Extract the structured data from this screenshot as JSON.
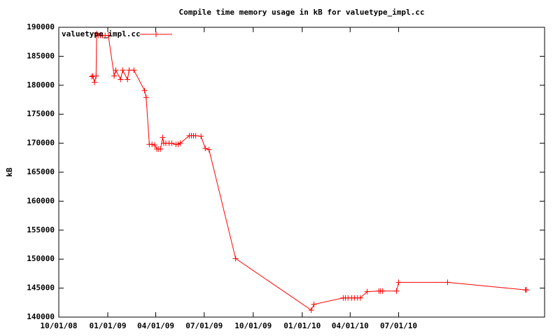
{
  "chart_data": {
    "type": "line",
    "title": "Compile time memory usage in kB for valuetype_impl.cc",
    "y_label": "kB",
    "x": [
      "12/02/08",
      "12/04/08",
      "12/07/08",
      "12/10/08",
      "12/11/08",
      "12/14/08",
      "12/18/08",
      "12/22/08",
      "12/27/08",
      "01/02/09",
      "01/13/09",
      "01/16/09",
      "01/25/09",
      "01/29/09",
      "02/07/09",
      "02/10/09",
      "02/19/09",
      "03/11/09",
      "03/14/09",
      "03/20/09",
      "03/25/09",
      "03/30/09",
      "04/03/09",
      "04/06/09",
      "04/10/09",
      "04/14/09",
      "04/16/09",
      "04/20/09",
      "04/26/09",
      "05/01/09",
      "05/09/09",
      "05/13/09",
      "05/17/09",
      "06/03/09",
      "06/07/09",
      "06/11/09",
      "06/15/09",
      "06/25/09",
      "07/03/09",
      "07/10/09",
      "08/29/09",
      "01/18/10",
      "01/23/10",
      "03/19/10",
      "03/23/10",
      "03/28/10",
      "04/04/10",
      "04/09/10",
      "04/15/10",
      "04/20/10",
      "05/03/10",
      "05/25/10",
      "05/28/10",
      "06/01/10",
      "06/27/10",
      "07/01/10",
      "10/01/10",
      "02/24/11",
      "02/26/11"
    ],
    "series": [
      {
        "name": "valuetype_impl.cc",
        "color": "#ff0000",
        "values": [
          181500,
          181600,
          180500,
          181600,
          188900,
          188600,
          188600,
          188600,
          188600,
          188600,
          181600,
          182600,
          181000,
          182600,
          181000,
          182600,
          182600,
          179100,
          177900,
          169800,
          169800,
          169700,
          169000,
          169000,
          169000,
          171000,
          170000,
          170000,
          170000,
          170000,
          169800,
          169800,
          170000,
          171300,
          171300,
          171300,
          171300,
          171200,
          169100,
          168900,
          150100,
          141200,
          142200,
          143300,
          143300,
          143300,
          143300,
          143300,
          143300,
          143300,
          144400,
          144500,
          144500,
          144500,
          144500,
          146000,
          146000,
          144700,
          144700
        ]
      }
    ],
    "xlim": [
      "10/01/08",
      "04/01/11"
    ],
    "xticks": [
      "10/01/08",
      "01/01/09",
      "04/01/09",
      "07/01/09",
      "10/01/09",
      "01/01/10",
      "04/01/10",
      "07/01/10"
    ],
    "ylim": [
      140000,
      190000
    ],
    "yticks": [
      140000,
      145000,
      150000,
      155000,
      160000,
      165000,
      170000,
      175000,
      180000,
      185000,
      190000
    ],
    "legend": "top left"
  }
}
